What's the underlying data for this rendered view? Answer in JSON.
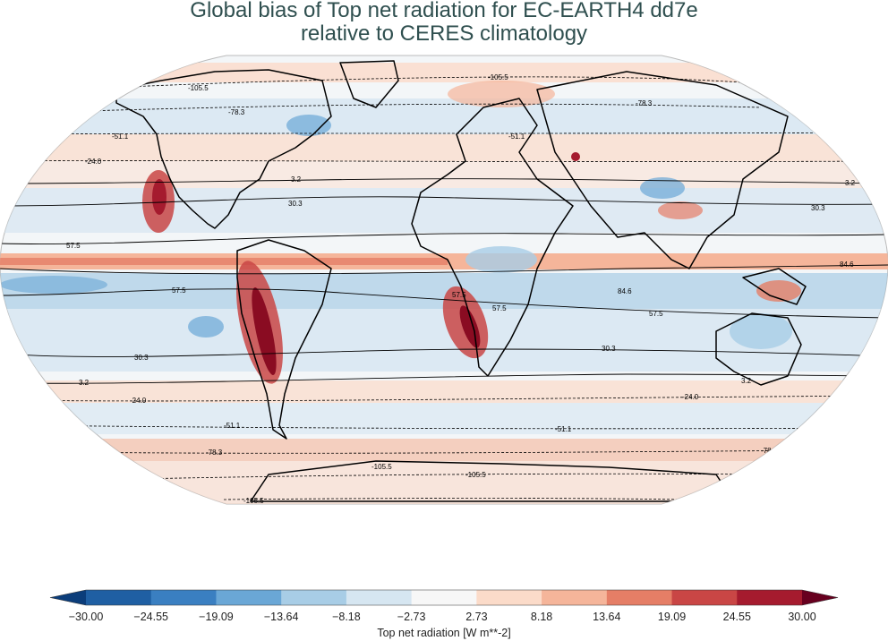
{
  "title_line1": "Global bias of Top net radiation for EC-EARTH4 dd7e",
  "title_line2": "relative to CERES climatology",
  "contour_labels": [
    "-105.5",
    "-78.3",
    "-51.1",
    "-24.0",
    "3.2",
    "30.3",
    "57.5",
    "84.6"
  ],
  "colorbar": {
    "label": "Top net radiation [W m**-2]",
    "ticks": [
      "−30.00",
      "−24.55",
      "−19.09",
      "−13.64",
      "−8.18",
      "−2.73",
      "2.73",
      "8.18",
      "13.64",
      "19.09",
      "24.55",
      "30.00"
    ],
    "colors": [
      "#0b3d7a",
      "#1f5fa3",
      "#3a7fc1",
      "#6aa7d6",
      "#a8cde6",
      "#d6e6f1",
      "#f7f7f7",
      "#fbdbc9",
      "#f5b59a",
      "#e57e66",
      "#c94645",
      "#a51b2e",
      "#67001f"
    ],
    "extend": "both"
  }
}
